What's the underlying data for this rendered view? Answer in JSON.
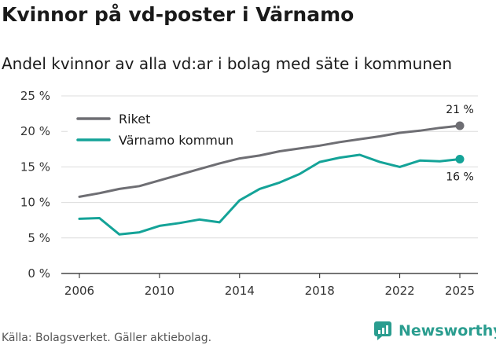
{
  "title": "Kvinnor på vd-poster i Värnamo",
  "subtitle": "Andel kvinnor av alla vd:ar i bolag med säte i kommunen",
  "source": "Källa: Bolagsverket. Gäller aktiebolag.",
  "brand": "Newsworthy",
  "colors": {
    "riket": "#6e6e73",
    "kommun": "#14a398",
    "grid": "#dcdcdc",
    "brand": "#2a9d8f"
  },
  "chart_data": {
    "type": "line",
    "title": "Kvinnor på vd-poster i Värnamo",
    "subtitle": "Andel kvinnor av alla vd:ar i bolag med säte i kommunen",
    "xlabel": "",
    "ylabel": "",
    "x": [
      2006,
      2007,
      2008,
      2009,
      2010,
      2011,
      2012,
      2013,
      2014,
      2015,
      2016,
      2017,
      2018,
      2019,
      2020,
      2021,
      2022,
      2023,
      2024,
      2025
    ],
    "xticks": [
      2006,
      2010,
      2014,
      2018,
      2022,
      2025
    ],
    "xtick_labels": [
      "2006",
      "2010",
      "2014",
      "2018",
      "2022",
      "2025"
    ],
    "ylim": [
      0,
      25
    ],
    "yticks": [
      0,
      5,
      10,
      15,
      20,
      25
    ],
    "ytick_labels": [
      "0 %",
      "5 %",
      "10 %",
      "15 %",
      "20 %",
      "25 %"
    ],
    "grid": true,
    "legend_position": "top-left",
    "series": [
      {
        "name": "Riket",
        "color": "#6e6e73",
        "values": [
          10.8,
          11.3,
          11.9,
          12.3,
          13.1,
          13.9,
          14.7,
          15.5,
          16.2,
          16.6,
          17.2,
          17.6,
          18.0,
          18.5,
          18.9,
          19.3,
          19.8,
          20.1,
          20.5,
          20.8
        ],
        "end_label": "21 %"
      },
      {
        "name": "Värnamo kommun",
        "color": "#14a398",
        "values": [
          7.7,
          7.8,
          5.5,
          5.8,
          6.7,
          7.1,
          7.6,
          7.2,
          10.3,
          11.9,
          12.8,
          14.0,
          15.7,
          16.3,
          16.7,
          15.7,
          15.0,
          15.9,
          15.8,
          16.1
        ],
        "end_label": "16 %"
      }
    ]
  }
}
